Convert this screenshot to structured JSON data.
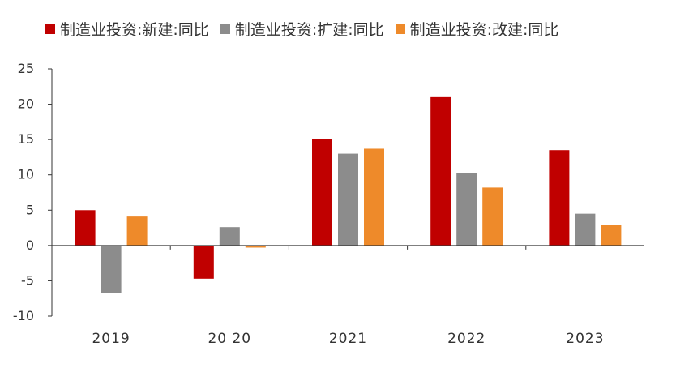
{
  "chart_data": {
    "type": "bar",
    "title": "",
    "xlabel": "",
    "ylabel": "",
    "categories": [
      "2019",
      "20 20",
      "2021",
      "2022",
      "2023"
    ],
    "series": [
      {
        "name": "制造业投资:新建:同比",
        "color": "#c00000",
        "values": [
          5.0,
          -4.7,
          15.1,
          21.0,
          13.5
        ]
      },
      {
        "name": "制造业投资:扩建:同比",
        "color": "#8c8c8c",
        "values": [
          -6.7,
          2.6,
          13.0,
          10.3,
          4.5
        ]
      },
      {
        "name": "制造业投资:改建:同比",
        "color": "#ee8a2a",
        "values": [
          4.1,
          -0.3,
          13.7,
          8.2,
          2.9
        ]
      }
    ],
    "ylim": [
      -10,
      25
    ],
    "yticks": [
      25,
      20,
      15,
      10,
      5,
      0,
      -5,
      -10
    ],
    "ytick_labels": [
      "25",
      "20",
      "15",
      "10",
      "5",
      "0",
      "-5",
      "-10"
    ],
    "legend_position": "top",
    "grid": false
  }
}
